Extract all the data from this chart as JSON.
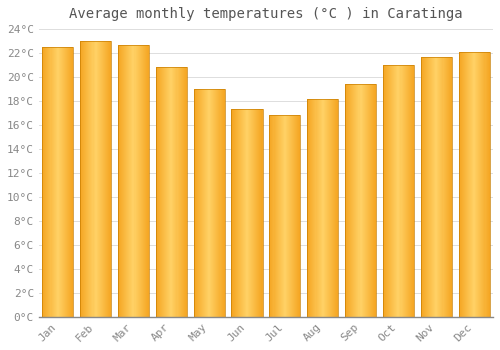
{
  "title": "Average monthly temperatures (°C ) in Caratinga",
  "months": [
    "Jan",
    "Feb",
    "Mar",
    "Apr",
    "May",
    "Jun",
    "Jul",
    "Aug",
    "Sep",
    "Oct",
    "Nov",
    "Dec"
  ],
  "values": [
    22.5,
    23.0,
    22.7,
    20.8,
    19.0,
    17.3,
    16.8,
    18.2,
    19.4,
    21.0,
    21.7,
    22.1
  ],
  "bar_color_dark": "#F5A623",
  "bar_color_light": "#FFD166",
  "bar_edge_color": "#C87D00",
  "ylim": [
    0,
    24
  ],
  "ytick_step": 2,
  "background_color": "#FFFFFF",
  "plot_bg_color": "#FFFFFF",
  "grid_color": "#D8D8D8",
  "title_fontsize": 10,
  "tick_fontsize": 8,
  "font_color": "#888888",
  "title_color": "#555555"
}
